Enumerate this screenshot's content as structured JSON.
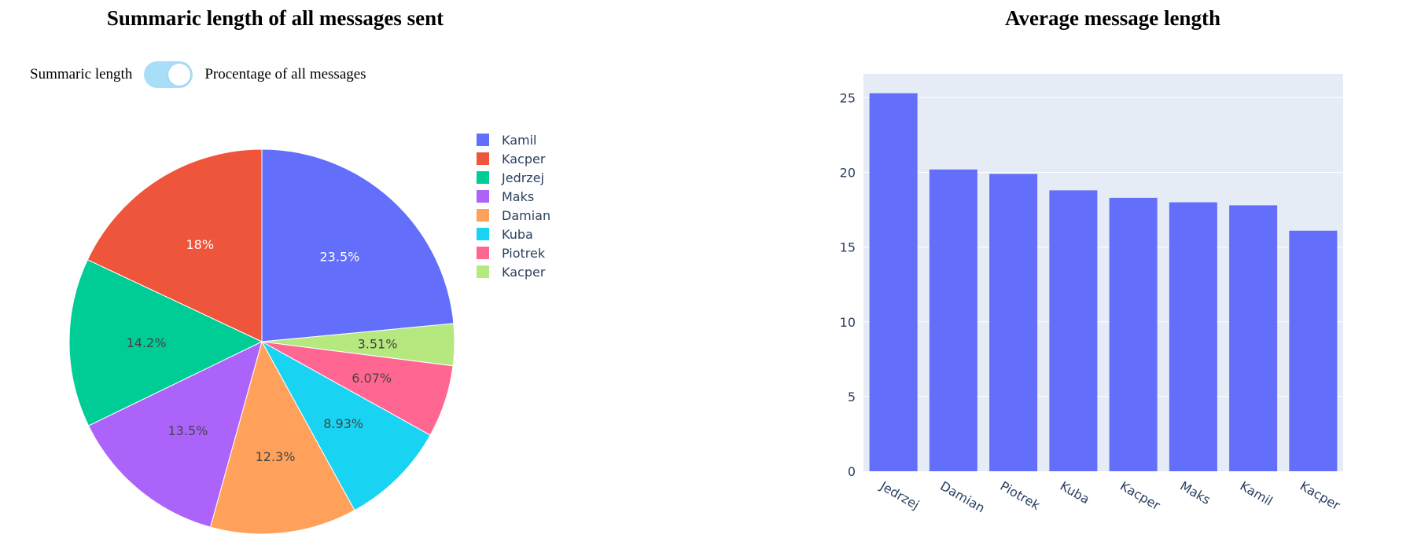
{
  "pie_title": "Summaric length of all messages sent",
  "bar_title": "Average message length",
  "toggle": {
    "left_label": "Summaric length",
    "right_label": "Procentage of all messages",
    "state": "on"
  },
  "colors": {
    "bar": "#636efa",
    "plot_bg": "#e5ecf6",
    "grid": "#ffffff",
    "tick": "#2a3f5f",
    "slice_text_dark": "#444444",
    "slice_text_light": "#ffffff"
  },
  "chart_data": [
    {
      "type": "pie",
      "title": "Summaric length of all messages sent",
      "legend_position": "right",
      "slices": [
        {
          "label": "Kamil",
          "value": 23.5,
          "text": "23.5%",
          "color": "#636efa"
        },
        {
          "label": "Kacper",
          "value": 3.51,
          "text": "3.51%",
          "color": "#b6e880"
        },
        {
          "label": "Piotrek",
          "value": 6.07,
          "text": "6.07%",
          "color": "#ff6692"
        },
        {
          "label": "Kuba",
          "value": 8.93,
          "text": "8.93%",
          "color": "#19d3f3"
        },
        {
          "label": "Damian",
          "value": 12.3,
          "text": "12.3%",
          "color": "#ffa15a"
        },
        {
          "label": "Maks",
          "value": 13.5,
          "text": "13.5%",
          "color": "#ab63fa"
        },
        {
          "label": "Jedrzej",
          "value": 14.2,
          "text": "14.2%",
          "color": "#00cc96"
        },
        {
          "label": "Kacper",
          "value": 18,
          "text": "18%",
          "color": "#ef553b"
        }
      ],
      "legend": [
        {
          "label": "Kamil",
          "color": "#636efa"
        },
        {
          "label": "Kacper",
          "color": "#ef553b"
        },
        {
          "label": "Jedrzej",
          "color": "#00cc96"
        },
        {
          "label": "Maks",
          "color": "#ab63fa"
        },
        {
          "label": "Damian",
          "color": "#ffa15a"
        },
        {
          "label": "Kuba",
          "color": "#19d3f3"
        },
        {
          "label": "Piotrek",
          "color": "#ff6692"
        },
        {
          "label": "Kacper",
          "color": "#b6e880"
        }
      ]
    },
    {
      "type": "bar",
      "title": "Average message length",
      "categories": [
        "Jedrzej",
        "Damian",
        "Piotrek",
        "Kuba",
        "Kacper",
        "Maks",
        "Kamil",
        "Kacper"
      ],
      "values": [
        25.3,
        20.2,
        19.9,
        18.8,
        18.3,
        18.0,
        17.8,
        16.1
      ],
      "ylim": [
        0,
        26.6
      ],
      "yticks": [
        0,
        5,
        10,
        15,
        20,
        25
      ],
      "grid": true,
      "xlabel": "",
      "ylabel": ""
    }
  ]
}
